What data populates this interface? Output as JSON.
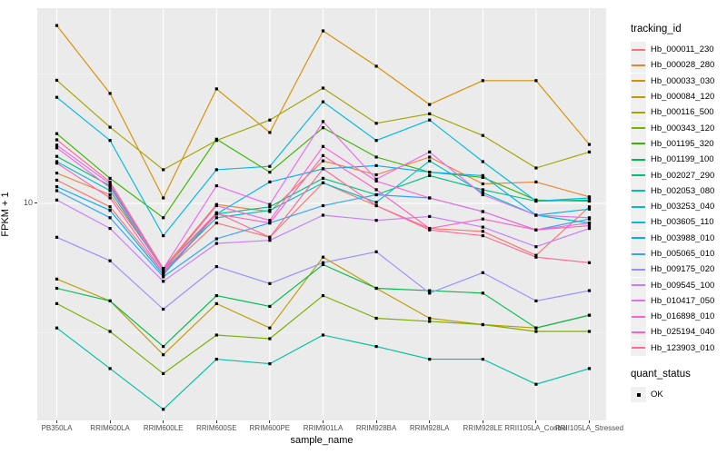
{
  "figure": {
    "x_axis_title": "sample_name",
    "y_axis_title": "FPKM + 1",
    "y_tick_label": "10",
    "legend_tracking_title": "tracking_id",
    "legend_quant_title": "quant_status",
    "legend_quant_item": "OK"
  },
  "colors": {
    "panel_bg": "#EBEBEB",
    "grid": "#FFFFFF",
    "point": "#000000",
    "tick_text": "#4D4D4D",
    "legend_key_bg": "#F0F0F0"
  },
  "chart_data": {
    "type": "line",
    "title": "",
    "xlabel": "sample_name",
    "ylabel": "FPKM + 1",
    "y_scale": "log10",
    "y_ticks": [
      10
    ],
    "ylim_approx": [
      1.4,
      58
    ],
    "grid": "on",
    "legend_position": "right",
    "point_marker": "black-square",
    "quant_status": "OK",
    "categories": [
      "PB350LA",
      "RRIM600LA",
      "RRIM600LE",
      "RRIM600SE",
      "RRIM600PE",
      "RRIM901LA",
      "RRIM928BA",
      "RRIM928LA",
      "RRIM928LE",
      "RRII105LA_Control",
      "RRII105LA_Stressed"
    ],
    "series": [
      {
        "name": "Hb_000011_230",
        "color": "#F8766D",
        "values": [
          12.3,
          9.7,
          5.4,
          8.4,
          7.4,
          12.0,
          9.8,
          8.0,
          7.8,
          6.3,
          9.7
        ]
      },
      {
        "name": "Hb_000028_280",
        "color": "#EA8331",
        "values": [
          13.1,
          10.8,
          5.6,
          9.9,
          9.3,
          14.6,
          12.9,
          15.1,
          11.9,
          12.1,
          10.6
        ]
      },
      {
        "name": "Hb_000033_030",
        "color": "#D89000",
        "values": [
          48.7,
          26.6,
          10.5,
          27.7,
          18.8,
          46.4,
          33.9,
          24.1,
          29.8,
          29.8,
          16.9
        ]
      },
      {
        "name": "Hb_000084_120",
        "color": "#C09B00",
        "values": [
          5.1,
          4.2,
          2.6,
          4.1,
          3.3,
          6.2,
          4.7,
          3.6,
          3.4,
          3.3,
          3.7
        ]
      },
      {
        "name": "Hb_000116_500",
        "color": "#A3A500",
        "values": [
          29.9,
          19.7,
          13.5,
          17.5,
          21.0,
          27.9,
          20.4,
          22.2,
          18.3,
          13.7,
          15.8
        ]
      },
      {
        "name": "Hb_000343_120",
        "color": "#7CAE00",
        "values": [
          4.1,
          3.2,
          2.2,
          3.1,
          3.0,
          4.4,
          3.6,
          3.5,
          3.4,
          3.2,
          3.2
        ]
      },
      {
        "name": "Hb_001195_320",
        "color": "#39B600",
        "values": [
          18.6,
          12.5,
          8.8,
          17.7,
          13.2,
          19.6,
          15.1,
          13.2,
          12.6,
          10.3,
          10.2
        ]
      },
      {
        "name": "Hb_001199_100",
        "color": "#00BB4E",
        "values": [
          4.7,
          4.2,
          2.8,
          4.4,
          4.0,
          5.8,
          4.7,
          4.6,
          4.5,
          3.3,
          3.7
        ]
      },
      {
        "name": "Hb_002027_290",
        "color": "#00BF7D",
        "values": [
          15.2,
          11.7,
          5.6,
          9.1,
          9.7,
          12.5,
          10.8,
          12.8,
          11.3,
          10.2,
          10.3
        ]
      },
      {
        "name": "Hb_002053_080",
        "color": "#00C1A3",
        "values": [
          3.3,
          2.3,
          1.6,
          2.5,
          2.4,
          3.1,
          2.8,
          2.5,
          2.5,
          2.0,
          2.3
        ]
      },
      {
        "name": "Hb_003253_040",
        "color": "#00BFC4",
        "values": [
          14.5,
          11.2,
          5.5,
          8.8,
          9.4,
          12.0,
          10.1,
          14.6,
          11.0,
          9.0,
          8.4
        ]
      },
      {
        "name": "Hb_003605_110",
        "color": "#00BAE0",
        "values": [
          25.7,
          17.5,
          7.5,
          13.5,
          13.9,
          24.7,
          17.5,
          21.0,
          14.5,
          10.2,
          10.5
        ]
      },
      {
        "name": "Hb_003988_010",
        "color": "#00B0F6",
        "values": [
          11.6,
          9.4,
          5.3,
          9.1,
          12.1,
          13.6,
          14.0,
          13.2,
          12.8,
          9.0,
          9.5
        ]
      },
      {
        "name": "Hb_005065_010",
        "color": "#35A2FF",
        "values": [
          11.2,
          8.8,
          5.2,
          7.3,
          8.4,
          9.8,
          10.8,
          10.5,
          9.3,
          7.9,
          8.7
        ]
      },
      {
        "name": "Hb_009175_020",
        "color": "#9590FF",
        "values": [
          7.4,
          6.0,
          3.9,
          5.7,
          4.9,
          5.9,
          6.5,
          4.5,
          5.4,
          4.2,
          4.6
        ]
      },
      {
        "name": "Hb_009545_100",
        "color": "#C77CFF",
        "values": [
          10.3,
          8.0,
          5.0,
          7.0,
          7.2,
          9.0,
          8.6,
          8.9,
          8.1,
          6.8,
          8.0
        ]
      },
      {
        "name": "Hb_010417_050",
        "color": "#E76BF3",
        "values": [
          16.8,
          11.9,
          5.6,
          11.7,
          9.9,
          20.7,
          12.4,
          15.8,
          10.8,
          9.0,
          8.8
        ]
      },
      {
        "name": "Hb_016898_010",
        "color": "#FA62DB",
        "values": [
          16.4,
          11.5,
          5.5,
          9.8,
          8.6,
          16.6,
          12.2,
          10.5,
          9.3,
          7.9,
          8.4
        ]
      },
      {
        "name": "Hb_025194_040",
        "color": "#FF62BC",
        "values": [
          14.3,
          10.5,
          5.4,
          9.1,
          8.4,
          15.3,
          11.3,
          8.0,
          8.7,
          7.9,
          8.2
        ]
      },
      {
        "name": "Hb_123903_010",
        "color": "#FF6A98",
        "values": [
          17.6,
          12.1,
          5.6,
          9.2,
          7.4,
          13.6,
          9.8,
          7.9,
          7.5,
          6.2,
          5.9
        ]
      }
    ]
  }
}
